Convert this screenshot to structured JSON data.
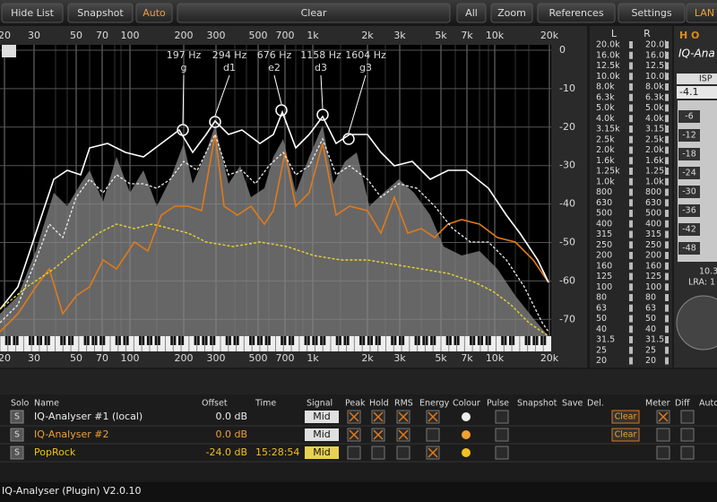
{
  "toolbar": {
    "buttons": [
      "Hide List",
      "Snapshot",
      "Auto",
      "Clear",
      "All",
      "Zoom",
      "References",
      "Settings",
      "LAN"
    ]
  },
  "spectrum": {
    "freq_labels": [
      "20",
      "30",
      "50",
      "70",
      "100",
      "200",
      "300",
      "500",
      "700",
      "1k",
      "2k",
      "3k",
      "5k",
      "7k",
      "10k",
      "20k"
    ],
    "db_labels": [
      "0",
      "-10",
      "-20",
      "-30",
      "-40",
      "-50",
      "-60",
      "-70"
    ],
    "peaks": [
      {
        "freq": "197 Hz",
        "note": "g"
      },
      {
        "freq": "294 Hz",
        "note": "d1"
      },
      {
        "freq": "676 Hz",
        "note": "e2"
      },
      {
        "freq": "1158 Hz",
        "note": "d3"
      },
      {
        "freq": "1604 Hz",
        "note": "g3"
      }
    ]
  },
  "meter": {
    "left": "L",
    "right": "R",
    "labels": [
      "20.0k",
      "16.0k",
      "12.5k",
      "10.0k",
      "8.0k",
      "6.3k",
      "5.0k",
      "4.0k",
      "3.15k",
      "2.5k",
      "2.0k",
      "1.6k",
      "1.25k",
      "1.0k",
      "800",
      "630",
      "500",
      "400",
      "315",
      "250",
      "200",
      "160",
      "125",
      "100",
      "80",
      "63",
      "50",
      "40",
      "31.5",
      "25",
      "20"
    ]
  },
  "side_panel": {
    "logo": "H O",
    "product": "IQ-Ana",
    "isp": "ISP",
    "value": "-4.1",
    "scale": [
      "-6",
      "-12",
      "-18",
      "-24",
      "-30",
      "-36",
      "-42",
      "-48"
    ],
    "reading": "10.3",
    "lra": "LRA: 1"
  },
  "list": {
    "columns": [
      "Solo",
      "Name",
      "Offset",
      "Time",
      "Signal",
      "Peak",
      "Hold",
      "RMS",
      "Energy",
      "Colour",
      "Pulse",
      "Snapshot",
      "Save",
      "Del.",
      "Meter",
      "Diff",
      "Auto"
    ],
    "rows": [
      {
        "solo": "S",
        "name": "IQ-Analyser #1 (local)",
        "offset": "0.0 dB",
        "signal": "Mid",
        "button": "Clear"
      },
      {
        "solo": "S",
        "name": "IQ-Analyser #2",
        "offset": "0.0 dB",
        "signal": "Mid",
        "button": "Clear"
      },
      {
        "solo": "S",
        "name": "PopRock",
        "offset": "-24.0 dB",
        "time": "15:28:54",
        "signal": "Mid"
      }
    ]
  },
  "footer": "IQ-Analyser (Plugin) V2.0.10"
}
